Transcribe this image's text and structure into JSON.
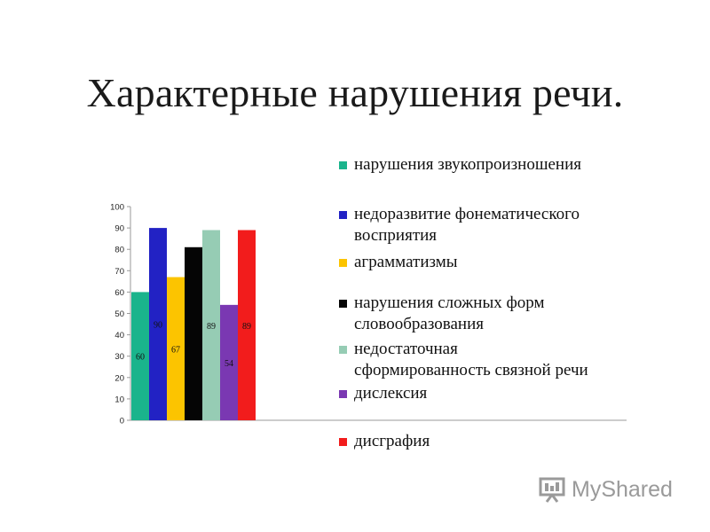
{
  "title": "Характерные нарушения речи.",
  "chart_data": {
    "type": "bar",
    "ylim": [
      0,
      100
    ],
    "yticks": [
      "0",
      "10",
      "20",
      "30",
      "40",
      "50",
      "60",
      "70",
      "80",
      "90",
      "100"
    ],
    "grid": false,
    "legend_position": "right",
    "series": [
      {
        "name": "нарушения звукопроизношения",
        "value": 60,
        "label": "60",
        "color": "#1ab48c"
      },
      {
        "name": "недоразвитие фонематического восприятия",
        "value": 90,
        "label": "90",
        "color": "#2222c4"
      },
      {
        "name": "аграмматизмы",
        "value": 67,
        "label": "67",
        "color": "#fcc400"
      },
      {
        "name": "нарушения сложных форм словообразования",
        "value": 81,
        "label": "",
        "color": "#050505"
      },
      {
        "name": "недостаточная сформированность связной речи",
        "value": 89,
        "label": "89",
        "color": "#96ccb4"
      },
      {
        "name": "дислексия",
        "value": 54,
        "label": "54",
        "color": "#7a38b2"
      },
      {
        "name": "дисграфия",
        "value": 89,
        "label": "89",
        "color": "#f21c1c"
      }
    ]
  },
  "legend": [
    {
      "lines": [
        "нарушения звукопроизношения"
      ],
      "color": "#1ab48c"
    },
    {
      "lines": [
        "недоразвитие фонематического",
        "восприятия"
      ],
      "color": "#2222c4"
    },
    {
      "lines": [
        "аграмматизмы"
      ],
      "color": "#fcc400"
    },
    {
      "lines": [
        "нарушения сложных форм",
        "словообразования"
      ],
      "color": "#050505"
    },
    {
      "lines": [
        "недостаточная",
        "сформированность связной речи"
      ],
      "color": "#96ccb4"
    },
    {
      "lines": [
        "дислексия"
      ],
      "color": "#7a38b2"
    },
    {
      "lines": [
        "дисграфия"
      ],
      "color": "#f21c1c"
    }
  ],
  "watermark": {
    "text": "MyShared",
    "icon": "presentation-board-icon"
  }
}
